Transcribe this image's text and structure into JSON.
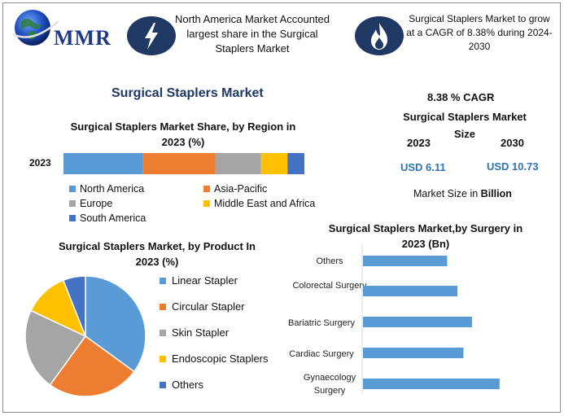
{
  "header": {
    "logo_text": "MMR",
    "badge1_icon": "lightning-bolt-icon",
    "badge1_text": "North America Market Accounted largest share in the Surgical Staplers Market",
    "badge2_icon": "flame-icon",
    "badge2_text": "Surgical Staplers Market to grow at a CAGR of 8.38% during 2024-2030",
    "badge_color": "#1f3864"
  },
  "main_title": "Surgical Staplers Market",
  "kpis": {
    "cagr": "8.38 % CAGR",
    "size_title_line1": "Surgical Staplers Market",
    "size_title_line2": "Size",
    "year1": "2023",
    "year2": "2030",
    "value1": "USD 6.11",
    "value2": "USD 10.73",
    "unit_prefix": "Market Size in ",
    "unit_bold": "Billion"
  },
  "colors": {
    "blue": "#5b9bd5",
    "orange": "#ed7d31",
    "gray": "#a5a5a5",
    "yellow": "#ffc000",
    "darkblue": "#4472c4",
    "title_navy": "#1f3864"
  },
  "chart_data": [
    {
      "type": "bar",
      "orientation": "horizontal-stacked",
      "title": "Surgical Staplers Market Share, by Region in 2023 (%)",
      "categories": [
        "2023"
      ],
      "series": [
        {
          "name": "North America",
          "values": [
            33
          ],
          "color": "#5b9bd5"
        },
        {
          "name": "Asia-Pacific",
          "values": [
            30
          ],
          "color": "#ed7d31"
        },
        {
          "name": "Europe",
          "values": [
            19
          ],
          "color": "#a5a5a5"
        },
        {
          "name": "Middle East and Africa",
          "values": [
            11
          ],
          "color": "#ffc000"
        },
        {
          "name": "South America",
          "values": [
            7
          ],
          "color": "#4472c4"
        }
      ],
      "legend": "bottom"
    },
    {
      "type": "pie",
      "title": "Surgical Staplers Market, by Product In 2023 (%)",
      "labels": [
        "Linear Stapler",
        "Circular Stapler",
        "Skin Stapler",
        "Endoscopic Staplers",
        "Others"
      ],
      "values": [
        35,
        25,
        22,
        12,
        6
      ],
      "colors": [
        "#5b9bd5",
        "#ed7d31",
        "#a5a5a5",
        "#ffc000",
        "#4472c4"
      ],
      "legend": "right"
    },
    {
      "type": "bar",
      "orientation": "horizontal",
      "title": "Surgical Staplers Market,by Surgery in 2023 (Bn)",
      "categories": [
        "Others",
        "Colorectal Surgery",
        "Bariatric Surgery",
        "Cardiac Surgery",
        "Gynaecology Surgery"
      ],
      "values": [
        0.98,
        1.1,
        1.27,
        1.17,
        1.59
      ],
      "color": "#5b9bd5",
      "xlim": [
        0,
        1.8
      ]
    }
  ]
}
